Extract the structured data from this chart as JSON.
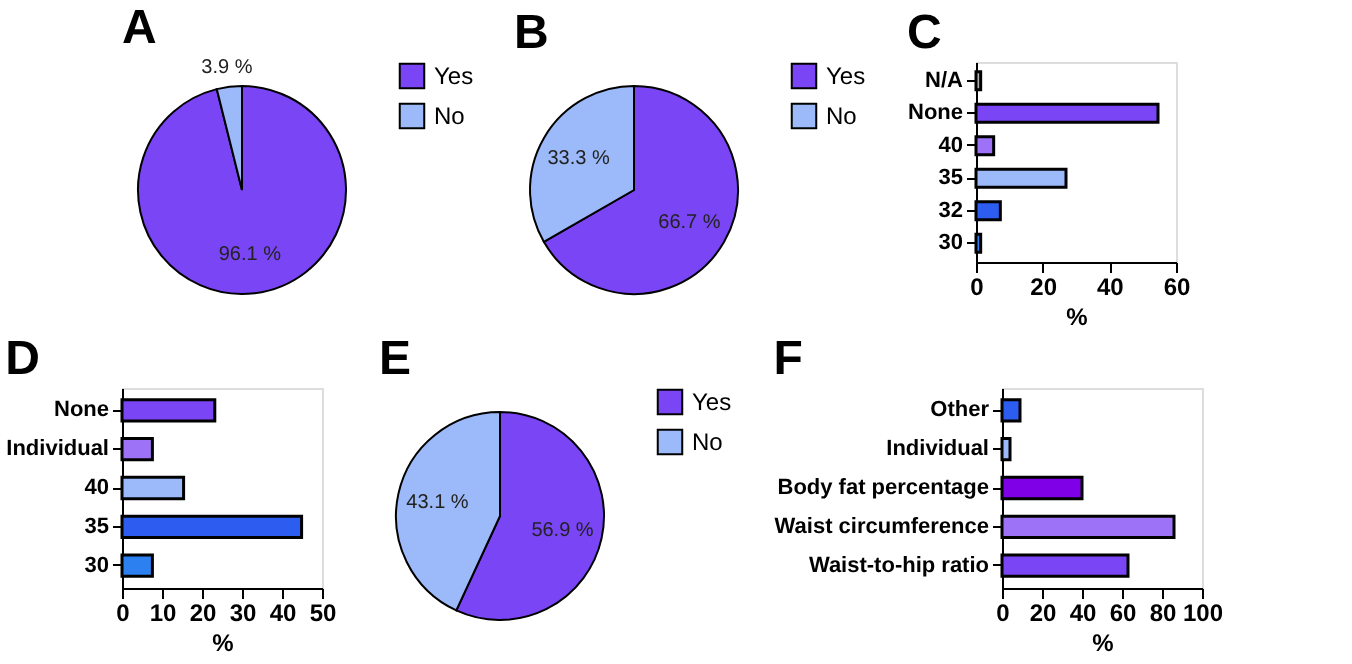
{
  "chart_data": [
    {
      "type": "pie",
      "title": "A",
      "categories": [
        "Yes",
        "No"
      ],
      "values": [
        96.1,
        3.9
      ],
      "colors": [
        "#7a45f5",
        "#9cbaf9"
      ],
      "value_labels": [
        "96.1 %",
        "3.9 %"
      ],
      "legend": "right"
    },
    {
      "type": "pie",
      "title": "B",
      "categories": [
        "Yes",
        "No"
      ],
      "values": [
        66.7,
        33.3
      ],
      "colors": [
        "#7a45f5",
        "#9cbaf9"
      ],
      "value_labels": [
        "66.7 %",
        "33.3 %"
      ],
      "legend": "right"
    },
    {
      "type": "bar",
      "title": "C",
      "orientation": "horizontal",
      "categories": [
        "N/A",
        "None",
        "40",
        "35",
        "32",
        "30"
      ],
      "values": [
        1.4,
        54.6,
        5.3,
        27,
        7.3,
        1.4
      ],
      "colors": [
        "#b0b0b0",
        "#7a45f5",
        "#9d72f7",
        "#9cbaf9",
        "#2d5cf0",
        "#2d80f0"
      ],
      "xlim": [
        0,
        60
      ],
      "xticks": [
        0,
        20,
        40,
        60
      ],
      "xlabel": "%",
      "grid": false
    },
    {
      "type": "bar",
      "title": "D",
      "orientation": "horizontal",
      "categories": [
        "None",
        "Individual",
        "40",
        "35",
        "30"
      ],
      "values": [
        23.2,
        7.6,
        15.4,
        44.9,
        7.6
      ],
      "colors": [
        "#7a45f5",
        "#9d72f7",
        "#9cbaf9",
        "#2d5cf0",
        "#2d80f0"
      ],
      "xlim": [
        0,
        50
      ],
      "xticks": [
        0,
        10,
        20,
        30,
        40,
        50
      ],
      "xlabel": "%",
      "grid": false
    },
    {
      "type": "pie",
      "title": "E",
      "categories": [
        "Yes",
        "No"
      ],
      "values": [
        56.9,
        43.1
      ],
      "colors": [
        "#7a45f5",
        "#9cbaf9"
      ],
      "value_labels": [
        "56.9 %",
        "43.1 %"
      ],
      "legend": "right"
    },
    {
      "type": "bar",
      "title": "F",
      "orientation": "horizontal",
      "categories": [
        "Other",
        "Individual",
        "Body fat percentage",
        "Waist circumference",
        "Waist-to-hip ratio"
      ],
      "values": [
        9,
        4,
        40,
        86,
        63
      ],
      "colors": [
        "#2d5cf0",
        "#9cbaf9",
        "#7f00e6",
        "#9d72f7",
        "#7a45f5"
      ],
      "xlim": [
        0,
        100
      ],
      "xticks": [
        0,
        20,
        40,
        60,
        80,
        100
      ],
      "xlabel": "%",
      "grid": false
    }
  ]
}
